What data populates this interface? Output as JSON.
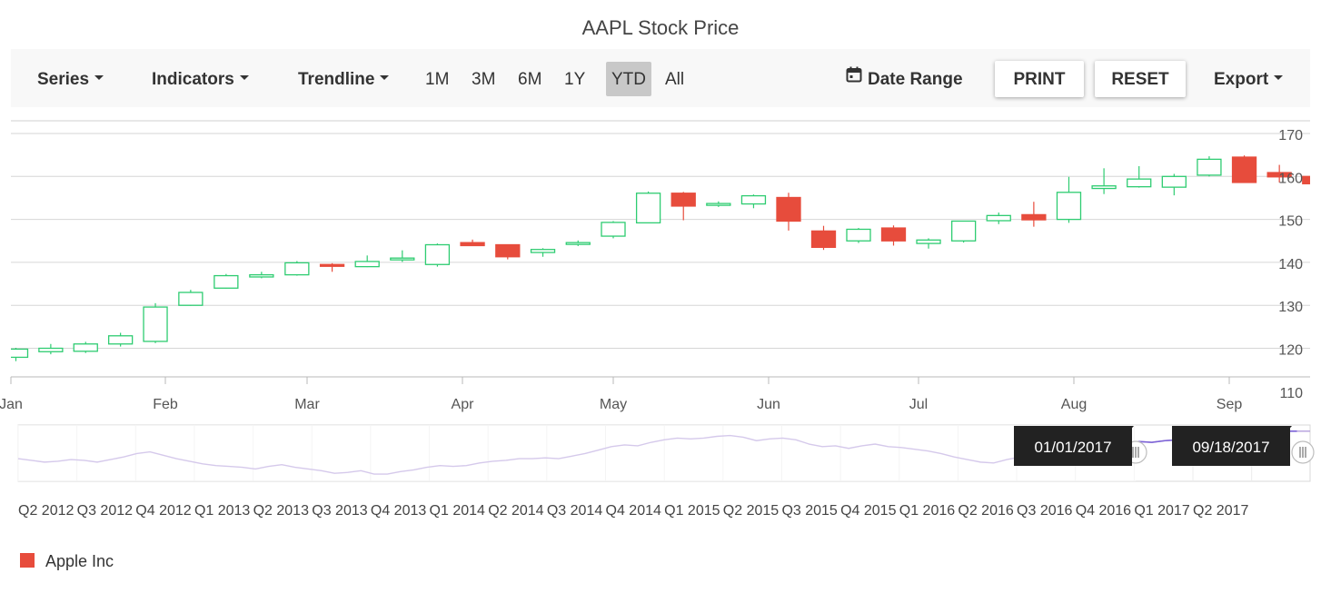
{
  "title": "AAPL Stock Price",
  "toolbar": {
    "series_label": "Series",
    "indicators_label": "Indicators",
    "trendline_label": "Trendline",
    "periods": [
      "1M",
      "3M",
      "6M",
      "1Y",
      "YTD",
      "All"
    ],
    "selected_period": "YTD",
    "date_range_label": "Date Range",
    "print_label": "PRINT",
    "reset_label": "RESET",
    "export_label": "Export"
  },
  "colors": {
    "bull": "#2ecc71",
    "bear": "#e74c3c",
    "navigator_line": "#b39ddb",
    "grid": "#d6d6d6",
    "tooltip_bg": "#222222"
  },
  "chart_data": {
    "type": "candlestick",
    "title": "AAPL Stock Price",
    "y_axis": {
      "min": 110,
      "max": 170,
      "interval": 10,
      "position": "right",
      "ticks": [
        "110",
        "120",
        "130",
        "140",
        "150",
        "160",
        "170"
      ]
    },
    "x_axis": {
      "labels": [
        "Jan",
        "Feb",
        "Mar",
        "Apr",
        "May",
        "Jun",
        "Jul",
        "Aug",
        "Sep"
      ]
    },
    "grid": true,
    "candles": [
      {
        "date": "2017-01-02",
        "open": 117.9,
        "high": 120.1,
        "low": 117.0,
        "close": 119.8
      },
      {
        "date": "2017-01-09",
        "open": 119.2,
        "high": 121.0,
        "low": 118.6,
        "close": 120.0
      },
      {
        "date": "2017-01-16",
        "open": 119.3,
        "high": 121.5,
        "low": 118.9,
        "close": 121.0
      },
      {
        "date": "2017-01-23",
        "open": 121.0,
        "high": 123.6,
        "low": 120.4,
        "close": 122.9
      },
      {
        "date": "2017-01-30",
        "open": 121.6,
        "high": 130.5,
        "low": 121.2,
        "close": 129.6
      },
      {
        "date": "2017-02-06",
        "open": 130.0,
        "high": 133.6,
        "low": 129.9,
        "close": 133.0
      },
      {
        "date": "2017-02-13",
        "open": 134.0,
        "high": 137.3,
        "low": 133.9,
        "close": 136.9
      },
      {
        "date": "2017-02-20",
        "open": 136.6,
        "high": 137.8,
        "low": 136.3,
        "close": 137.1
      },
      {
        "date": "2017-02-27",
        "open": 137.1,
        "high": 140.3,
        "low": 136.9,
        "close": 139.9
      },
      {
        "date": "2017-03-06",
        "open": 139.5,
        "high": 139.8,
        "low": 137.8,
        "close": 139.3
      },
      {
        "date": "2017-03-13",
        "open": 139.0,
        "high": 141.6,
        "low": 138.9,
        "close": 140.2
      },
      {
        "date": "2017-03-20",
        "open": 140.8,
        "high": 142.8,
        "low": 140.1,
        "close": 141.0
      },
      {
        "date": "2017-03-27",
        "open": 139.5,
        "high": 144.4,
        "low": 139.0,
        "close": 144.1
      },
      {
        "date": "2017-04-03",
        "open": 144.6,
        "high": 145.3,
        "low": 143.9,
        "close": 143.9
      },
      {
        "date": "2017-04-10",
        "open": 144.1,
        "high": 144.2,
        "low": 140.7,
        "close": 141.3
      },
      {
        "date": "2017-04-17",
        "open": 142.3,
        "high": 143.3,
        "low": 141.3,
        "close": 143.0
      },
      {
        "date": "2017-04-24",
        "open": 144.3,
        "high": 145.1,
        "low": 143.8,
        "close": 144.6
      },
      {
        "date": "2017-05-01",
        "open": 146.1,
        "high": 149.6,
        "low": 145.6,
        "close": 149.3
      },
      {
        "date": "2017-05-08",
        "open": 149.2,
        "high": 156.5,
        "low": 149.1,
        "close": 156.1
      },
      {
        "date": "2017-05-15",
        "open": 156.1,
        "high": 156.4,
        "low": 149.8,
        "close": 153.1
      },
      {
        "date": "2017-05-22",
        "open": 153.4,
        "high": 154.2,
        "low": 152.9,
        "close": 153.7
      },
      {
        "date": "2017-05-29",
        "open": 153.6,
        "high": 155.8,
        "low": 152.6,
        "close": 155.5
      },
      {
        "date": "2017-06-05",
        "open": 155.1,
        "high": 156.2,
        "low": 147.4,
        "close": 149.6
      },
      {
        "date": "2017-06-12",
        "open": 147.3,
        "high": 148.5,
        "low": 142.9,
        "close": 143.5
      },
      {
        "date": "2017-06-19",
        "open": 145.0,
        "high": 148.0,
        "low": 144.5,
        "close": 147.7
      },
      {
        "date": "2017-06-26",
        "open": 148.0,
        "high": 148.6,
        "low": 143.9,
        "close": 145.0
      },
      {
        "date": "2017-07-03",
        "open": 144.4,
        "high": 145.6,
        "low": 143.2,
        "close": 145.2
      },
      {
        "date": "2017-07-10",
        "open": 145.0,
        "high": 149.7,
        "low": 144.6,
        "close": 149.6
      },
      {
        "date": "2017-07-17",
        "open": 149.7,
        "high": 151.6,
        "low": 148.9,
        "close": 150.9
      },
      {
        "date": "2017-07-24",
        "open": 151.1,
        "high": 154.1,
        "low": 148.3,
        "close": 149.9
      },
      {
        "date": "2017-07-31",
        "open": 150.0,
        "high": 159.9,
        "low": 149.2,
        "close": 156.3
      },
      {
        "date": "2017-08-07",
        "open": 157.2,
        "high": 161.9,
        "low": 155.9,
        "close": 157.8
      },
      {
        "date": "2017-08-14",
        "open": 157.6,
        "high": 162.4,
        "low": 157.4,
        "close": 159.4
      },
      {
        "date": "2017-08-21",
        "open": 157.5,
        "high": 160.6,
        "low": 155.6,
        "close": 160.0
      },
      {
        "date": "2017-08-28",
        "open": 160.3,
        "high": 164.7,
        "low": 160.0,
        "close": 164.0
      },
      {
        "date": "2017-09-04",
        "open": 164.5,
        "high": 164.9,
        "low": 158.8,
        "close": 158.6
      },
      {
        "date": "2017-09-11",
        "open": 160.9,
        "high": 162.7,
        "low": 158.6,
        "close": 159.9
      },
      {
        "date": "2017-09-18",
        "open": 160.0,
        "high": 160.8,
        "low": 158.5,
        "close": 158.3
      }
    ],
    "navigator": {
      "labels": [
        "Q2 2012",
        "Q3 2012",
        "Q4 2012",
        "Q1 2013",
        "Q2 2013",
        "Q3 2013",
        "Q4 2013",
        "Q1 2014",
        "Q2 2014",
        "Q3 2014",
        "Q4 2014",
        "Q1 2015",
        "Q2 2015",
        "Q3 2015",
        "Q4 2015",
        "Q1 2016",
        "Q2 2016",
        "Q3 2016",
        "Q4 2016",
        "Q1 2017",
        "Q2 2017"
      ],
      "series": [
        80,
        78,
        76,
        77,
        79,
        78,
        76,
        79,
        82,
        86,
        88,
        84,
        80,
        77,
        74,
        72,
        71,
        70,
        68,
        71,
        73,
        70,
        68,
        66,
        63,
        64,
        66,
        62,
        62,
        65,
        67,
        70,
        72,
        71,
        72,
        75,
        77,
        78,
        80,
        80,
        81,
        80,
        83,
        86,
        90,
        94,
        96,
        95,
        99,
        102,
        104,
        103,
        104,
        106,
        107,
        105,
        101,
        103,
        104,
        102,
        97,
        94,
        95,
        92,
        95,
        97,
        94,
        93,
        91,
        89,
        86,
        82,
        79,
        76,
        75,
        79,
        82,
        85,
        87,
        88,
        89,
        90,
        91,
        95,
        98,
        100,
        99,
        101,
        102,
        103,
        104,
        105,
        107,
        109,
        110,
        111,
        112,
        112,
        112
      ],
      "series_range": [
        60,
        115
      ],
      "start_label": "01/01/2017",
      "end_label": "09/18/2017"
    },
    "legend": [
      {
        "name": "Apple Inc",
        "color": "#e74c3c"
      }
    ],
    "legend_position": "bottom-left"
  }
}
